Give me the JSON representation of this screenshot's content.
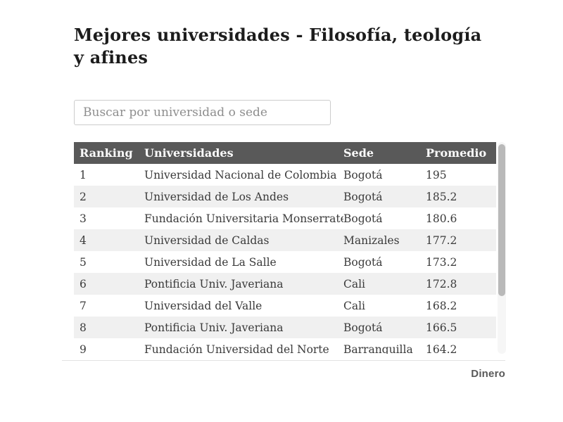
{
  "header": {
    "title": "Mejores universidades - Filosofía, teología y afines"
  },
  "search": {
    "placeholder": "Buscar por universidad o sede",
    "value": ""
  },
  "table": {
    "columns": {
      "ranking": "Ranking",
      "universidades": "Universidades",
      "sede": "Sede",
      "promedio": "Promedio"
    },
    "rows": [
      {
        "rank": "1",
        "universidad": "Universidad Nacional de Colombia",
        "sede": "Bogotá",
        "promedio": "195"
      },
      {
        "rank": "2",
        "universidad": "Universidad de Los Andes",
        "sede": "Bogotá",
        "promedio": "185.2"
      },
      {
        "rank": "3",
        "universidad": "Fundación Universitaria Monserrate",
        "sede": "Bogotá",
        "promedio": "180.6"
      },
      {
        "rank": "4",
        "universidad": "Universidad de Caldas",
        "sede": "Manizales",
        "promedio": "177.2"
      },
      {
        "rank": "5",
        "universidad": "Universidad de La Salle",
        "sede": "Bogotá",
        "promedio": "173.2"
      },
      {
        "rank": "6",
        "universidad": "Pontificia Univ. Javeriana",
        "sede": "Cali",
        "promedio": "172.8"
      },
      {
        "rank": "7",
        "universidad": "Universidad del Valle",
        "sede": "Cali",
        "promedio": "168.2"
      },
      {
        "rank": "8",
        "universidad": "Pontificia Univ. Javeriana",
        "sede": "Bogotá",
        "promedio": "166.5"
      },
      {
        "rank": "9",
        "universidad": "Fundación Universidad del Norte",
        "sede": "Barranquilla",
        "promedio": "164.2"
      }
    ]
  },
  "footer": {
    "brand": "Dinero"
  },
  "colors": {
    "header_bg": "#595959",
    "header_text": "#fbfbfb",
    "zebra_row": "#f0f0f0",
    "body_text": "#3a3a3a",
    "title_text": "#1c1c1c",
    "input_border": "#cccccc",
    "placeholder_text": "#8e8e8e",
    "divider": "#e3e3e3",
    "scrollbar_thumb": "#b9b9b9",
    "scrollbar_track": "#f6f6f6",
    "brand_text": "#595959"
  }
}
